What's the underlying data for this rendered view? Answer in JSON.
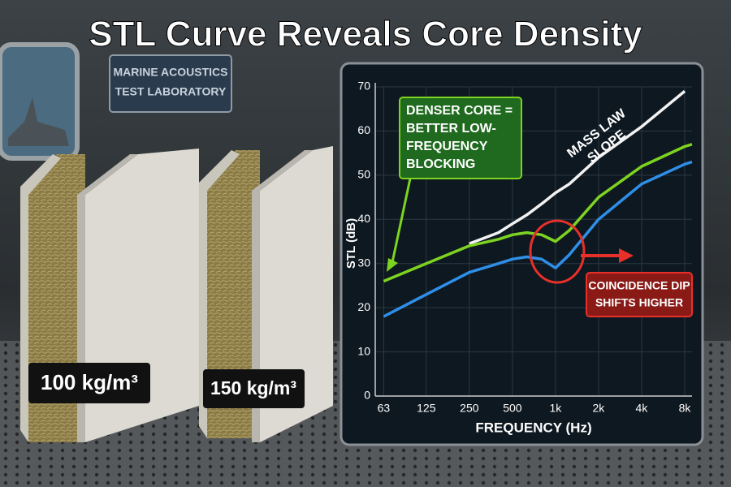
{
  "title": "STL Curve Reveals Core Density",
  "lab_sign": [
    "MARINE ACOUSTICS",
    "TEST LABORATORY"
  ],
  "panels": [
    "100 kg/m³",
    "150 kg/m³"
  ],
  "chart_data": {
    "type": "line",
    "x": [
      63,
      125,
      250,
      400,
      500,
      630,
      800,
      1000,
      1250,
      2000,
      4000,
      8000,
      9000
    ],
    "series": [
      {
        "color": "#f2f2f2",
        "values": [
          null,
          null,
          34.5,
          37,
          39,
          41,
          43.5,
          46,
          48,
          54,
          61,
          69,
          null
        ]
      },
      {
        "color": "#7ed321",
        "values": [
          26,
          30,
          34,
          35.5,
          36.5,
          37,
          36.5,
          35,
          37.5,
          45,
          52,
          56.5,
          57
        ]
      },
      {
        "color": "#2f8fe8",
        "values": [
          18,
          23,
          28,
          30,
          31,
          31.5,
          31,
          29,
          32,
          40,
          48,
          52.5,
          53
        ]
      }
    ],
    "log_x": true,
    "xlim": [
      55,
      9000
    ],
    "xticks": [
      63,
      125,
      250,
      500,
      {
        "value": 1000,
        "label": "1k"
      },
      {
        "value": 2000,
        "label": "2k"
      },
      {
        "value": 4000,
        "label": "4k"
      },
      {
        "value": 8000,
        "label": "8k"
      }
    ],
    "ylim": [
      0,
      70
    ],
    "yticks": [
      0,
      10,
      20,
      30,
      40,
      50,
      60,
      70
    ],
    "grid": true,
    "xlabel": "FREQUENCY (Hz)",
    "ylabel": "STL (dB)",
    "annotations": [
      [
        "DENSER CORE =",
        "BETTER LOW-",
        "FREQUENCY",
        "BLOCKING"
      ],
      [
        "MASS LAW",
        "SLOPE"
      ],
      [
        "COINCIDENCE DIP",
        "SHIFTS HIGHER"
      ]
    ]
  }
}
